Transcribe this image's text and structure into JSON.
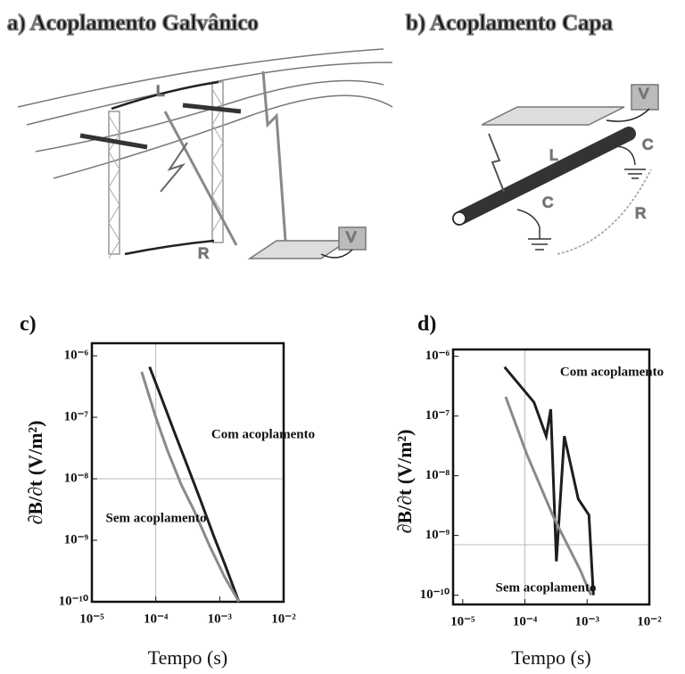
{
  "diagrams": [
    {
      "title": "a) Acoplamento Galvânico",
      "labels": [
        "L",
        "R",
        "V"
      ]
    },
    {
      "title": "b) Acoplamento Capa",
      "labels": [
        "V",
        "L",
        "C",
        "C",
        "R"
      ]
    }
  ],
  "chart_data": [
    {
      "type": "line",
      "title": "c)",
      "x_label": "Tempo (s)",
      "y_label": "∂B/∂t (V/m²)",
      "log_x": true,
      "log_y": true,
      "xlim": [
        1e-05,
        0.01
      ],
      "ylim": [
        1e-10,
        1.6e-06
      ],
      "xticks": [
        {
          "value": 1e-05,
          "label": "10⁻⁵"
        },
        {
          "value": 0.0001,
          "label": "10⁻⁴"
        },
        {
          "value": 0.001,
          "label": "10⁻³"
        },
        {
          "value": 0.01,
          "label": "10⁻²"
        }
      ],
      "yticks": [
        {
          "value": 1e-10,
          "label": "10⁻¹⁰"
        },
        {
          "value": 1e-09,
          "label": "10⁻⁹"
        },
        {
          "value": 1e-08,
          "label": "10⁻⁸"
        },
        {
          "value": 1e-07,
          "label": "10⁻⁷"
        },
        {
          "value": 1e-06,
          "label": "10⁻⁶"
        }
      ],
      "grid_x": [
        0.0001
      ],
      "grid_y": [
        1e-08
      ],
      "series": [
        {
          "name": "Com acoplamento",
          "color": "#1e1e1e",
          "x": [
            8e-05,
            0.00012,
            0.0002,
            0.0003,
            0.0005,
            0.0008,
            0.0012,
            0.002
          ],
          "values": [
            6.6e-07,
            2.2e-07,
            5.4e-08,
            1.8e-08,
            4.5e-09,
            1.2e-09,
            4.1e-10,
            1e-10
          ]
        },
        {
          "name": "Sem acoplamento",
          "color": "#8a8a8a",
          "x": [
            6e-05,
            0.0001,
            0.00015,
            0.00025,
            0.0004,
            0.0007,
            0.0012,
            0.002
          ],
          "values": [
            5.5e-07,
            1e-07,
            3e-08,
            8e-09,
            3e-09,
            8e-10,
            2.5e-10,
            1e-10
          ]
        }
      ]
    },
    {
      "type": "line",
      "title": "d)",
      "x_label": "Tempo (s)",
      "y_label": "∂B/∂t (V/m²)",
      "log_x": true,
      "log_y": true,
      "xlim": [
        7e-06,
        0.01
      ],
      "ylim": [
        7e-11,
        1.3e-06
      ],
      "xticks": [
        {
          "value": 1e-05,
          "label": "10⁻⁵"
        },
        {
          "value": 0.0001,
          "label": "10⁻⁴"
        },
        {
          "value": 0.001,
          "label": "10⁻³"
        },
        {
          "value": 0.01,
          "label": "10⁻²"
        }
      ],
      "yticks": [
        {
          "value": 1e-10,
          "label": "10⁻¹⁰"
        },
        {
          "value": 1e-09,
          "label": "10⁻⁹"
        },
        {
          "value": 1e-08,
          "label": "10⁻⁸"
        },
        {
          "value": 1e-07,
          "label": "10⁻⁷"
        },
        {
          "value": 1e-06,
          "label": "10⁻⁶"
        }
      ],
      "grid_x": [
        0.0001
      ],
      "grid_y": [
        7e-10
      ],
      "series": [
        {
          "name": "Com acoplamento",
          "color": "#1e1e1e",
          "x": [
            4.7e-05,
            0.00014,
            0.00022,
            0.00026,
            0.00032,
            0.00043,
            0.00072,
            0.00107,
            0.00126
          ],
          "values": [
            6.6e-07,
            1.7e-07,
            4.6e-08,
            1.3e-07,
            3.7e-10,
            4.6e-08,
            4.1e-09,
            2.2e-09,
            1e-10
          ]
        },
        {
          "name": "Sem acoplamento",
          "color": "#8a8a8a",
          "x": [
            4.9e-05,
            0.000107,
            0.00029,
            0.00078,
            0.00115
          ],
          "values": [
            2.1e-07,
            2.3e-08,
            2e-09,
            2.6e-10,
            1e-10
          ]
        }
      ]
    }
  ]
}
